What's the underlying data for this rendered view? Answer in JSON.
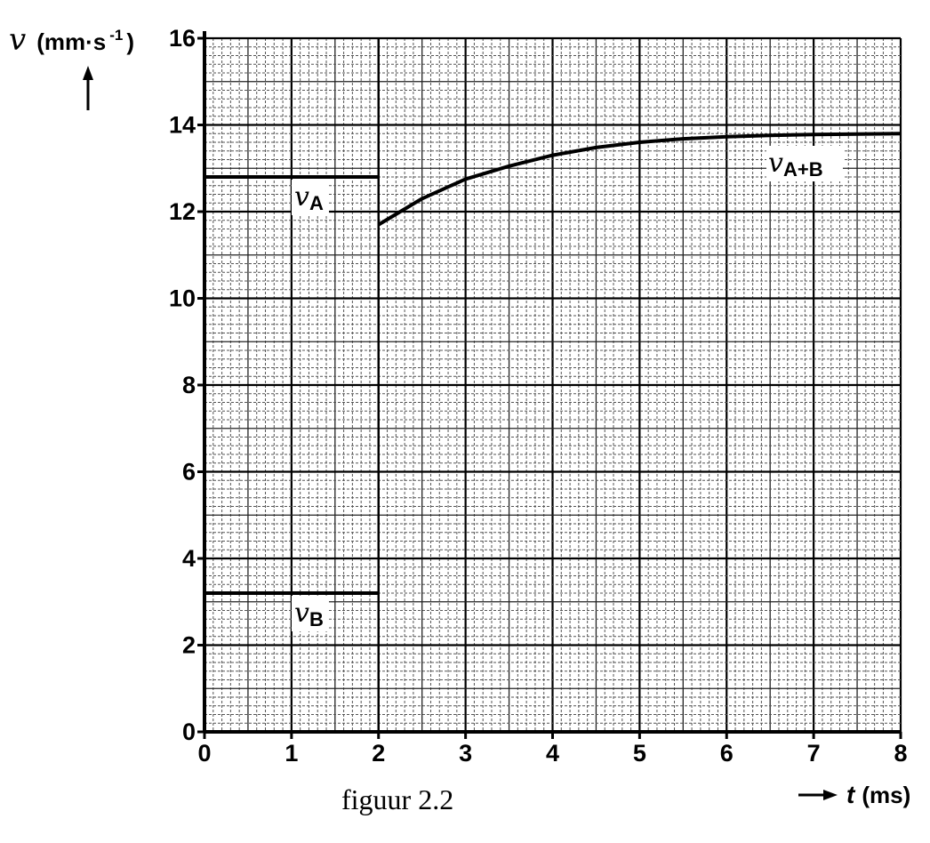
{
  "chart_data": {
    "type": "line",
    "caption": "figuur 2.2",
    "ylabel": {
      "symbol": "v",
      "unit": "(mm·s",
      "unit_exp": "-1",
      "unit_close": ")"
    },
    "xlabel": {
      "symbol": "t",
      "unit": "(ms)"
    },
    "xlim": [
      0,
      8
    ],
    "ylim": [
      0,
      16
    ],
    "x_ticks": [
      "0",
      "1",
      "2",
      "3",
      "4",
      "5",
      "6",
      "7",
      "8"
    ],
    "y_ticks": [
      "0",
      "2",
      "4",
      "6",
      "8",
      "10",
      "12",
      "14",
      "16"
    ],
    "grid": true,
    "series": [
      {
        "name": "v",
        "sub": "A",
        "x": [
          0,
          2
        ],
        "y": [
          12.8,
          12.8
        ]
      },
      {
        "name": "v",
        "sub": "B",
        "x": [
          0,
          2
        ],
        "y": [
          3.2,
          3.2
        ]
      },
      {
        "name": "v",
        "sub": "A+B",
        "x": [
          2.0,
          2.5,
          3.0,
          3.5,
          4.0,
          4.5,
          5.0,
          5.5,
          6.0,
          6.5,
          7.0,
          7.5,
          8.0
        ],
        "y": [
          11.7,
          12.3,
          12.75,
          13.05,
          13.3,
          13.48,
          13.6,
          13.68,
          13.73,
          13.76,
          13.78,
          13.79,
          13.8
        ]
      }
    ]
  }
}
